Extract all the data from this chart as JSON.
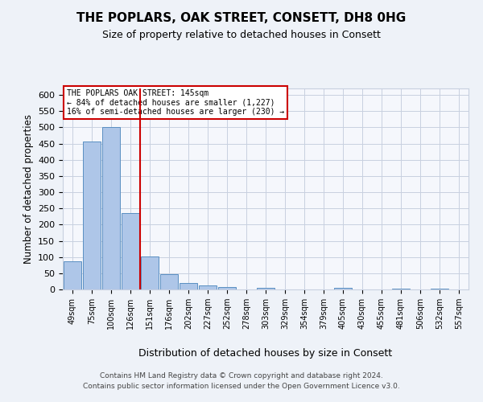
{
  "title_line1": "THE POPLARS, OAK STREET, CONSETT, DH8 0HG",
  "title_line2": "Size of property relative to detached houses in Consett",
  "xlabel": "Distribution of detached houses by size in Consett",
  "ylabel": "Number of detached properties",
  "bin_labels": [
    "49sqm",
    "75sqm",
    "100sqm",
    "126sqm",
    "151sqm",
    "176sqm",
    "202sqm",
    "227sqm",
    "252sqm",
    "278sqm",
    "303sqm",
    "329sqm",
    "354sqm",
    "379sqm",
    "405sqm",
    "430sqm",
    "455sqm",
    "481sqm",
    "506sqm",
    "532sqm",
    "557sqm"
  ],
  "bar_values": [
    88,
    457,
    500,
    235,
    102,
    47,
    20,
    13,
    8,
    0,
    5,
    0,
    0,
    0,
    4,
    0,
    0,
    3,
    0,
    3,
    0
  ],
  "bar_color": "#aec6e8",
  "bar_edge_color": "#5a8fc2",
  "vline_x": 3.5,
  "vline_color": "#cc0000",
  "annotation_title": "THE POPLARS OAK STREET: 145sqm",
  "annotation_line1": "← 84% of detached houses are smaller (1,227)",
  "annotation_line2": "16% of semi-detached houses are larger (230) →",
  "annotation_box_color": "#cc0000",
  "ylim": [
    0,
    620
  ],
  "yticks": [
    0,
    50,
    100,
    150,
    200,
    250,
    300,
    350,
    400,
    450,
    500,
    550,
    600
  ],
  "footer_line1": "Contains HM Land Registry data © Crown copyright and database right 2024.",
  "footer_line2": "Contains public sector information licensed under the Open Government Licence v3.0.",
  "bg_color": "#eef2f8",
  "plot_bg_color": "#f5f7fc",
  "grid_color": "#c8d0e0"
}
